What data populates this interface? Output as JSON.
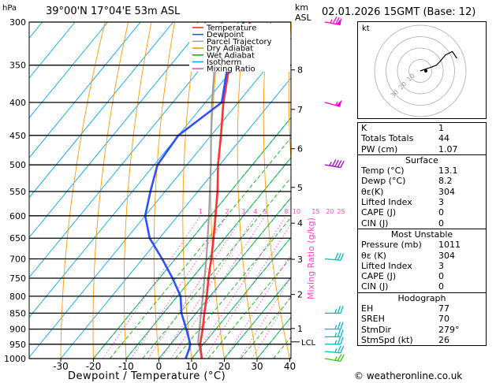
{
  "header": {
    "hpa_label": "hPa",
    "location": "39°00'N 17°04'E 53m ASL",
    "km_label": "km",
    "asl_label": "ASL",
    "datetime": "02.01.2026 15GMT (Base: 12)"
  },
  "legend": [
    {
      "label": "Temperature",
      "color": "#ff3030"
    },
    {
      "label": "Dewpoint",
      "color": "#3050ff"
    },
    {
      "label": "Parcel Trajectory",
      "color": "#a0a0a0"
    },
    {
      "label": "Dry Adiabat",
      "color": "#ff9900"
    },
    {
      "label": "Wet Adiabat",
      "color": "#00bb00"
    },
    {
      "label": "Isotherm",
      "color": "#00aaee"
    },
    {
      "label": "Mixing Ratio",
      "color": "#ff44cc"
    }
  ],
  "colors": {
    "temperature": "#ff3030",
    "dewpoint": "#3050ff",
    "parcel": "#a0a0a0",
    "dry_adiabat": "#ff9900",
    "wet_adiabat": "#00bb00",
    "isotherm": "#00aaee",
    "mixing_ratio": "#ff44cc",
    "wind_high": "#ff00cc",
    "wind_mid": "#aa00cc",
    "wind_low": "#00bbcc",
    "wind_sfc": "#33cc00"
  },
  "chart_data": {
    "type": "line",
    "xlabel": "Dewpoint / Temperature (°C)",
    "ylabel": "Mixing Ratio (g/kg)",
    "pressure_levels": [
      300,
      350,
      400,
      450,
      500,
      550,
      600,
      650,
      700,
      750,
      800,
      850,
      900,
      950,
      1000
    ],
    "x_ticks": [
      -30,
      -20,
      -10,
      0,
      10,
      20,
      30,
      40
    ],
    "xlim": [
      -40,
      40
    ],
    "plim": [
      300,
      1000
    ],
    "km_ticks": [
      {
        "label": "8",
        "p": 356
      },
      {
        "label": "7",
        "p": 410
      },
      {
        "label": "6",
        "p": 472
      },
      {
        "label": "5",
        "p": 542
      },
      {
        "label": "4",
        "p": 616
      },
      {
        "label": "3",
        "p": 701
      },
      {
        "label": "2",
        "p": 795
      },
      {
        "label": "1",
        "p": 898
      }
    ],
    "lcl": {
      "label": "LCL",
      "p": 942
    },
    "mixing_ratio_labels": [
      "1",
      "2",
      "3",
      "4",
      "5",
      "8",
      "10",
      "15",
      "20",
      "25"
    ],
    "mixing_ratio_values": [
      1,
      2,
      3,
      4,
      5,
      8,
      10,
      15,
      20,
      25
    ],
    "series": [
      {
        "name": "Temperature",
        "p": [
          1000,
          950,
          900,
          850,
          800,
          750,
          700,
          650,
          600,
          550,
          500,
          450,
          400,
          350,
          300
        ],
        "t": [
          13.1,
          9.0,
          6.0,
          2.5,
          -1.0,
          -5.0,
          -9.0,
          -13.5,
          -18.5,
          -24.0,
          -30.5,
          -37.0,
          -44.5,
          -52.0,
          -56.5
        ]
      },
      {
        "name": "Dewpoint",
        "p": [
          1000,
          970,
          950,
          900,
          850,
          800,
          750,
          700,
          650,
          600,
          550,
          500,
          450,
          400,
          350,
          300
        ],
        "t": [
          8.2,
          7.0,
          6.0,
          1.0,
          -4.5,
          -9.0,
          -16.0,
          -24.0,
          -33.0,
          -40.0,
          -44.5,
          -49.0,
          -50.0,
          -45.0,
          -52.5,
          -58.5
        ]
      },
      {
        "name": "Parcel Trajectory",
        "p": [
          1000,
          942,
          900,
          850,
          800,
          750,
          700,
          650,
          600,
          550,
          500,
          450,
          400,
          350,
          300
        ],
        "t": [
          13.1,
          7.8,
          5.0,
          1.5,
          -2.2,
          -6.2,
          -10.5,
          -15.3,
          -20.5,
          -26.3,
          -32.7,
          -40.0,
          -48.0,
          -56.5,
          -65.0
        ]
      }
    ],
    "wind_barbs": [
      {
        "p": 300,
        "dir": 280,
        "kt": 75
      },
      {
        "p": 400,
        "dir": 285,
        "kt": 55
      },
      {
        "p": 500,
        "dir": 280,
        "kt": 45
      },
      {
        "p": 700,
        "dir": 275,
        "kt": 30
      },
      {
        "p": 850,
        "dir": 270,
        "kt": 25
      },
      {
        "p": 900,
        "dir": 270,
        "kt": 25
      },
      {
        "p": 925,
        "dir": 270,
        "kt": 25
      },
      {
        "p": 950,
        "dir": 270,
        "kt": 25
      },
      {
        "p": 975,
        "dir": 275,
        "kt": 25
      },
      {
        "p": 1000,
        "dir": 280,
        "kt": 25
      }
    ],
    "hodograph": {
      "label": "kt",
      "ring_labels": [
        "10",
        "20",
        "30",
        "40",
        "50",
        "60",
        "70"
      ],
      "u": [
        0,
        3,
        9,
        14,
        17,
        22,
        28,
        32
      ],
      "v": [
        0,
        1,
        3,
        5,
        8,
        14,
        17,
        11
      ]
    }
  },
  "indices": {
    "k_label": "K",
    "k_value": "1",
    "tt_label": "Totals Totals",
    "tt_value": "44",
    "pw_label": "PW (cm)",
    "pw_value": "1.07",
    "surface_title": "Surface",
    "sfc_temp_label": "Temp (°C)",
    "sfc_temp_value": "13.1",
    "sfc_dewp_label": "Dewp (°C)",
    "sfc_dewp_value": "8.2",
    "sfc_theta_label": "θε(K)",
    "sfc_theta_value": "304",
    "sfc_li_label": "Lifted Index",
    "sfc_li_value": "3",
    "sfc_cape_label": "CAPE (J)",
    "sfc_cape_value": "0",
    "sfc_cin_label": "CIN (J)",
    "sfc_cin_value": "0",
    "mu_title": "Most Unstable",
    "mu_pres_label": "Pressure (mb)",
    "mu_pres_value": "1011",
    "mu_theta_label": "θε (K)",
    "mu_theta_value": "304",
    "mu_li_label": "Lifted Index",
    "mu_li_value": "3",
    "mu_cape_label": "CAPE (J)",
    "mu_cape_value": "0",
    "mu_cin_label": "CIN (J)",
    "mu_cin_value": "0",
    "hodo_title": "Hodograph",
    "eh_label": "EH",
    "eh_value": "77",
    "sreh_label": "SREH",
    "sreh_value": "70",
    "stmdir_label": "StmDir",
    "stmdir_value": "279°",
    "stmspd_label": "StmSpd (kt)",
    "stmspd_value": "26"
  },
  "footer": {
    "copyright": "© weatheronline.co.uk"
  }
}
